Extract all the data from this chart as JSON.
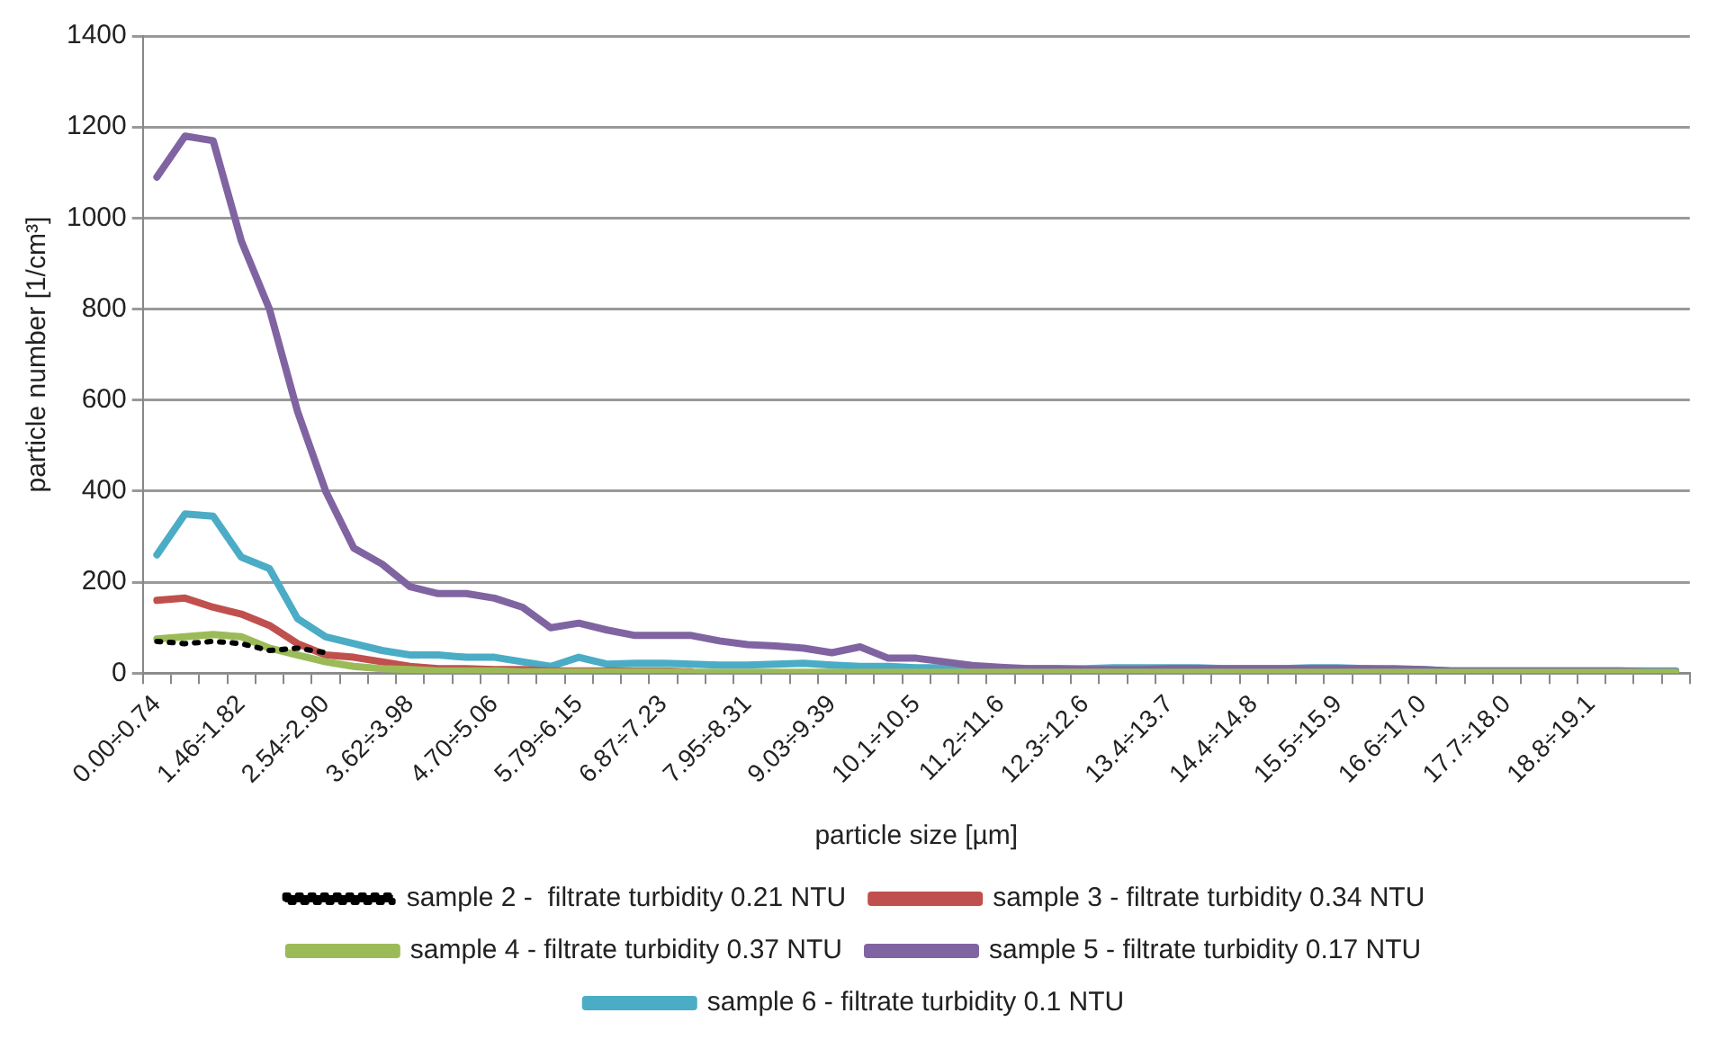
{
  "chart_data": {
    "type": "line",
    "xlabel": "particle size [µm]",
    "ylabel": "particle number [1/cm³]",
    "categories": [
      "0.00÷0.74",
      null,
      null,
      "1.46÷1.82",
      null,
      null,
      "2.54÷2.90",
      null,
      null,
      "3.62÷3.98",
      null,
      null,
      "4.70÷5.06",
      null,
      null,
      "5.79÷6.15",
      null,
      null,
      "6.87÷7.23",
      null,
      null,
      "7.95÷8.31",
      null,
      null,
      "9.03÷9.39",
      null,
      null,
      "10.1÷10.5",
      null,
      null,
      "11.2÷11.6",
      null,
      null,
      "12.3÷12.6",
      null,
      null,
      "13.4÷13.7",
      null,
      null,
      "14.4÷14.8",
      null,
      null,
      "15.5÷15.9",
      null,
      null,
      "16.6÷17.0",
      null,
      null,
      "17.7÷18.0",
      null,
      null,
      "18.8÷19.1",
      null,
      null,
      null
    ],
    "ylim": [
      0,
      1400
    ],
    "yticks": [
      0,
      200,
      400,
      600,
      800,
      1000,
      1200,
      1400
    ],
    "grid": "y",
    "legend": "bottom",
    "series": [
      {
        "name": "sample 2 -  filtrate turbidity 0.21 NTU",
        "color": "#000000",
        "line_style": "dotted",
        "values": [
          70,
          65,
          70,
          65,
          50,
          55,
          45,
          null,
          null,
          null,
          null,
          null,
          null,
          null,
          null,
          null,
          null,
          null,
          null,
          null,
          null,
          null,
          null,
          null,
          null,
          null,
          null,
          null,
          null,
          null,
          null,
          null,
          null,
          null,
          null,
          null,
          null,
          null,
          null,
          null,
          null,
          null,
          null,
          null,
          null,
          null,
          null,
          null,
          null,
          null,
          null,
          null,
          null,
          null,
          null
        ]
      },
      {
        "name": "sample 3 - filtrate turbidity 0.34 NTU",
        "color": "#c0504d",
        "line_style": "solid",
        "values": [
          160,
          165,
          145,
          130,
          105,
          65,
          40,
          35,
          25,
          15,
          10,
          10,
          8,
          8,
          5,
          5,
          5,
          5,
          5,
          3,
          null,
          null,
          null,
          null,
          null,
          null,
          null,
          null,
          null,
          null,
          null,
          null,
          null,
          null,
          null,
          null,
          null,
          null,
          null,
          null,
          null,
          null,
          null,
          null,
          null,
          null,
          null,
          null,
          null,
          null,
          null,
          null,
          null,
          null,
          null
        ]
      },
      {
        "name": "sample 4 - filtrate turbidity 0.37 NTU",
        "color": "#9bbb59",
        "line_style": "solid",
        "values": [
          75,
          80,
          85,
          80,
          55,
          40,
          25,
          15,
          10,
          8,
          5,
          5,
          5,
          3,
          3,
          3,
          3,
          3,
          3,
          2,
          2,
          2,
          2,
          2,
          2,
          2,
          2,
          2,
          2,
          2,
          2,
          2,
          2,
          2,
          2,
          2,
          2,
          2,
          2,
          2,
          2,
          2,
          2,
          2,
          2,
          2,
          2,
          2,
          2,
          2,
          2,
          2,
          2,
          2,
          2
        ]
      },
      {
        "name": "sample 5 - filtrate turbidity 0.17 NTU",
        "color": "#8064a2",
        "line_style": "solid",
        "values": [
          1090,
          1180,
          1170,
          950,
          800,
          575,
          400,
          275,
          240,
          190,
          175,
          175,
          165,
          145,
          100,
          110,
          95,
          83,
          83,
          83,
          71,
          63,
          60,
          55,
          45,
          58,
          33,
          33,
          25,
          17,
          13,
          10,
          10,
          8,
          8,
          8,
          10,
          10,
          10,
          10,
          10,
          10,
          10,
          10,
          10,
          8,
          5,
          5,
          5,
          5,
          5,
          5,
          5,
          3,
          3
        ]
      },
      {
        "name": "sample 6 - filtrate turbidity 0.1 NTU",
        "color": "#4bacc6",
        "line_style": "solid",
        "values": [
          260,
          350,
          345,
          255,
          230,
          120,
          80,
          65,
          50,
          40,
          40,
          35,
          35,
          25,
          15,
          35,
          20,
          22,
          22,
          20,
          18,
          18,
          20,
          22,
          18,
          15,
          15,
          12,
          12,
          10,
          10,
          10,
          10,
          10,
          12,
          12,
          12,
          12,
          10,
          10,
          10,
          12,
          12,
          10,
          8,
          8,
          5,
          5,
          5,
          5,
          5,
          5,
          5,
          5,
          5
        ]
      }
    ]
  }
}
